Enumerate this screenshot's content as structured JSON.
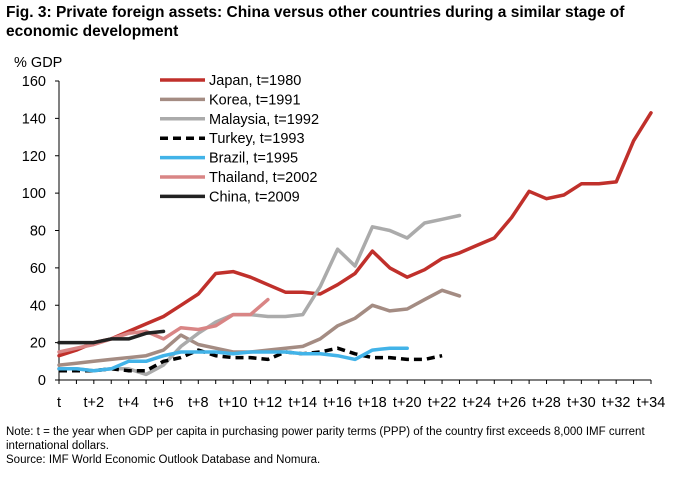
{
  "title": "Fig. 3: Private foreign assets: China versus other countries during a similar stage of economic development",
  "notes": [
    "Note: t = the year when GDP per capita in purchasing power parity terms (PPP) of the country first exceeds 8,000 IMF current international dollars.",
    "Source: IMF World Economic Outlook Database and Nomura."
  ],
  "chart_data": {
    "type": "line",
    "title": "Fig. 3: Private foreign assets: China versus other countries during a similar stage of economic development",
    "ylabel": "% GDP",
    "xlabel": "",
    "ylim": [
      0,
      160
    ],
    "yticks": [
      0,
      20,
      40,
      60,
      80,
      100,
      120,
      140,
      160
    ],
    "xlim": [
      0,
      34
    ],
    "xticks": [
      0,
      2,
      4,
      6,
      8,
      10,
      12,
      14,
      16,
      18,
      20,
      22,
      24,
      26,
      28,
      30,
      32,
      34
    ],
    "xtick_labels": [
      "t",
      "t+2",
      "t+4",
      "t+6",
      "t+8",
      "t+10",
      "t+12",
      "t+14",
      "t+16",
      "t+18",
      "t+20",
      "t+22",
      "t+24",
      "t+26",
      "t+28",
      "t+30",
      "t+32",
      "t+34"
    ],
    "grid": false,
    "legend_position": "top-left",
    "series": [
      {
        "name": "Japan, t=1980",
        "color": "#c0302b",
        "dash": false,
        "values": [
          13,
          16,
          20,
          22,
          26,
          30,
          34,
          40,
          46,
          57,
          58,
          55,
          51,
          47,
          47,
          46,
          51,
          57,
          69,
          60,
          55,
          59,
          65,
          68,
          72,
          76,
          87,
          101,
          97,
          99,
          105,
          105,
          106,
          128,
          143
        ]
      },
      {
        "name": "Korea, t=1991",
        "color": "#a48c83",
        "dash": false,
        "values": [
          8,
          9,
          10,
          11,
          12,
          13,
          16,
          24,
          19,
          17,
          15,
          15,
          16,
          17,
          18,
          22,
          29,
          33,
          40,
          37,
          38,
          43,
          48,
          45
        ]
      },
      {
        "name": "Malaysia, t=1992",
        "color": "#ababab",
        "dash": false,
        "values": [
          6,
          6,
          5,
          6,
          6,
          3,
          8,
          18,
          25,
          31,
          35,
          35,
          34,
          34,
          35,
          50,
          70,
          61,
          82,
          80,
          76,
          84,
          86,
          88
        ]
      },
      {
        "name": "Turkey, t=1993",
        "color": "#000000",
        "dash": true,
        "values": [
          5,
          5,
          5,
          6,
          5,
          5,
          10,
          12,
          16,
          13,
          12,
          12,
          11,
          15,
          14,
          15,
          17,
          14,
          12,
          12,
          11,
          11,
          13
        ]
      },
      {
        "name": "Brazil, t=1995",
        "color": "#42b3e8",
        "dash": false,
        "values": [
          6,
          6,
          5,
          6,
          10,
          10,
          13,
          15,
          15,
          15,
          14,
          15,
          15,
          15,
          14,
          14,
          13,
          11,
          16,
          17,
          17
        ]
      },
      {
        "name": "Thailand, t=2002",
        "color": "#d98585",
        "dash": false,
        "values": [
          15,
          17,
          19,
          22,
          25,
          26,
          22,
          28,
          27,
          29,
          35,
          35,
          43
        ]
      },
      {
        "name": "China, t=2009",
        "color": "#222222",
        "dash": false,
        "values": [
          20,
          20,
          20,
          22,
          22,
          25,
          26
        ]
      }
    ]
  }
}
